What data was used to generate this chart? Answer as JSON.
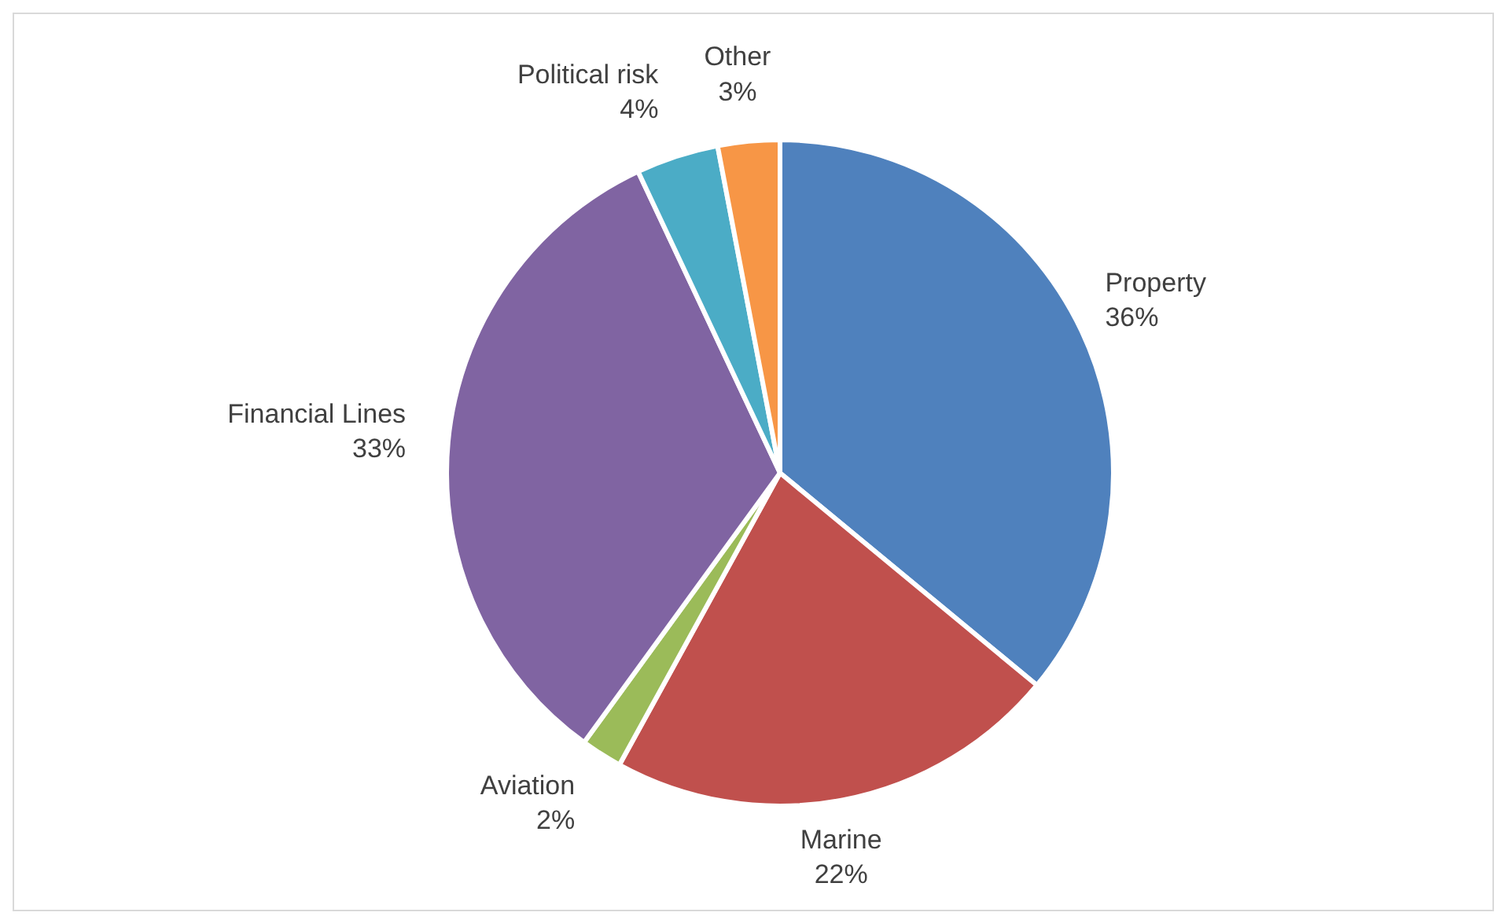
{
  "chart_data": {
    "type": "pie",
    "categories": [
      "Property",
      "Marine",
      "Aviation",
      "Financial Lines",
      "Political risk",
      "Other"
    ],
    "values": [
      36,
      22,
      2,
      33,
      4,
      3
    ],
    "value_labels": [
      "36%",
      "22%",
      "2%",
      "33%",
      "4%",
      "3%"
    ],
    "colors": [
      "#4f81bd",
      "#c0504d",
      "#9bbb59",
      "#8064a2",
      "#4bacc6",
      "#f79646"
    ],
    "legend": false
  }
}
